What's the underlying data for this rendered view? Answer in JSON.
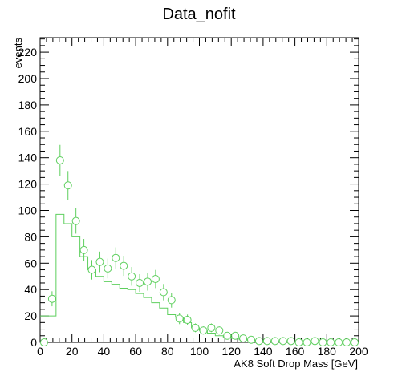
{
  "chart_data": {
    "type": "scatter",
    "title": "Data_nofit",
    "xlabel": "AK8 Soft Drop Mass [GeV]",
    "ylabel": "events",
    "xlim": [
      0,
      200
    ],
    "ylim": [
      0,
      231
    ],
    "grid": false,
    "legend": "none",
    "x_ticks": [
      0,
      20,
      40,
      60,
      80,
      100,
      120,
      140,
      160,
      180,
      200
    ],
    "y_ticks": [
      0,
      20,
      40,
      60,
      80,
      100,
      120,
      140,
      160,
      180,
      200,
      220
    ],
    "color": "#5ecf5e",
    "series": [
      {
        "type": "step",
        "bin_edges": [
          0,
          10,
          15,
          20,
          25,
          30,
          35,
          40,
          45,
          50,
          55,
          60,
          65,
          70,
          75,
          80,
          85,
          90,
          95,
          100,
          105,
          110,
          115,
          120,
          125,
          130,
          135,
          140,
          145,
          150,
          155,
          160,
          165,
          170,
          175,
          180,
          185,
          190,
          195,
          200
        ],
        "values": [
          20,
          97,
          90,
          80,
          65,
          55,
          50,
          46,
          44,
          41,
          40,
          37,
          34,
          30,
          26,
          21,
          19,
          15,
          11,
          9,
          7,
          5,
          4,
          3,
          2,
          1.5,
          1.2,
          1,
          0.8,
          0.5,
          0.4,
          0.3,
          0.2,
          0.2,
          0.1,
          0.1,
          0.1,
          0.1,
          0.1
        ]
      },
      {
        "type": "points",
        "x": [
          2.5,
          7.5,
          12.5,
          17.5,
          22.5,
          27.5,
          32.5,
          37.5,
          42.5,
          47.5,
          52.5,
          57.5,
          62.5,
          67.5,
          72.5,
          77.5,
          82.5,
          87.5,
          92.5,
          97.5,
          102.5,
          107.5,
          112.5,
          117.5,
          122.5,
          127.5,
          132.5,
          137.5,
          142.5,
          147.5,
          152.5,
          157.5,
          162.5,
          167.5,
          172.5,
          177.5,
          182.5,
          187.5,
          192.5,
          197.5
        ],
        "y": [
          0,
          33,
          138,
          119,
          92,
          70,
          55,
          61,
          56,
          64,
          58,
          50,
          45,
          46,
          48,
          38,
          32,
          18,
          17,
          11,
          9,
          11,
          9,
          5,
          5,
          3,
          2,
          1,
          1,
          1,
          1,
          1,
          0,
          0,
          1,
          0,
          0,
          0,
          0,
          0
        ],
        "errors": [
          0,
          5.7,
          11.7,
          10.9,
          9.6,
          8.4,
          7.4,
          7.8,
          7.5,
          8.0,
          7.6,
          7.1,
          6.7,
          6.8,
          6.9,
          6.2,
          5.7,
          4.2,
          4.1,
          3.3,
          3.0,
          3.3,
          3.0,
          2.2,
          2.2,
          1.7,
          1.4,
          1.0,
          1.0,
          1.0,
          1.0,
          1.0,
          0,
          0,
          1.0,
          0,
          0,
          0,
          0,
          0
        ]
      }
    ]
  }
}
